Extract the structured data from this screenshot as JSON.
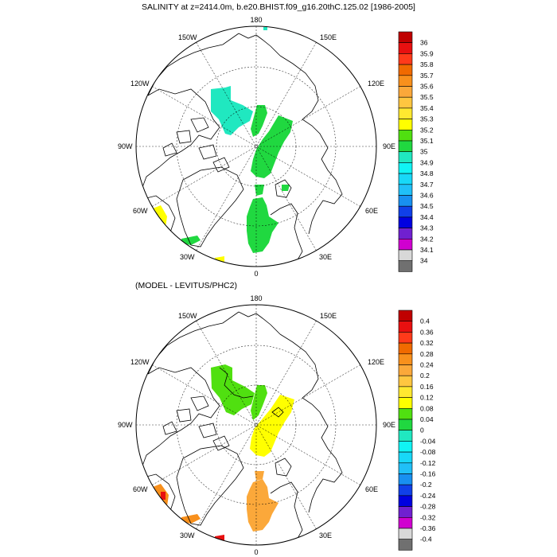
{
  "panel1": {
    "title": "SALINITY at z=2414.0m, b.e20.BHIST.f09_g16.20thC.125.02 [1986-2005]",
    "lon_labels": {
      "top": "180",
      "bottom": "0",
      "left": "90W",
      "right": "90E",
      "ul1": "150W",
      "ul2": "120W",
      "ur1": "150E",
      "ur2": "120E",
      "ll1": "60W",
      "ll2": "30W",
      "lr1": "60E",
      "lr2": "30E"
    },
    "colorbar": {
      "labels": [
        "36",
        "35.9",
        "35.8",
        "35.7",
        "35.6",
        "35.5",
        "35.4",
        "35.3",
        "35.2",
        "35.1",
        "35",
        "34.9",
        "34.8",
        "34.7",
        "34.6",
        "34.5",
        "34.4",
        "34.3",
        "34.2",
        "34.1",
        "34"
      ],
      "colors": [
        "#C00000",
        "#E81010",
        "#FF3A1A",
        "#F06A00",
        "#F8901C",
        "#FBA83A",
        "#FFC640",
        "#FFE830",
        "#FFFF00",
        "#50E010",
        "#20D840",
        "#20E8C0",
        "#10F4F4",
        "#18D8F8",
        "#20C0F8",
        "#1890F0",
        "#1040E8",
        "#0000E0",
        "#7020D0",
        "#D000D0",
        "#D8D8D8",
        "#707070"
      ]
    }
  },
  "panel2": {
    "title": "(MODEL - LEVITUS/PHC2)",
    "lon_labels": {
      "top": "180",
      "bottom": "0",
      "left": "90W",
      "right": "90E",
      "ul1": "150W",
      "ul2": "120W",
      "ur1": "150E",
      "ur2": "120E",
      "ll1": "60W",
      "ll2": "30W",
      "lr1": "60E",
      "lr2": "30E"
    },
    "colorbar": {
      "labels": [
        "0.4",
        "0.36",
        "0.32",
        "0.28",
        "0.24",
        "0.2",
        "0.16",
        "0.12",
        "0.08",
        "0.04",
        "0",
        "-0.04",
        "-0.08",
        "-0.12",
        "-0.16",
        "-0.2",
        "-0.24",
        "-0.28",
        "-0.32",
        "-0.36",
        "-0.4"
      ],
      "colors": [
        "#C00000",
        "#E81010",
        "#FF3A1A",
        "#F06A00",
        "#F8901C",
        "#FBA83A",
        "#FFC640",
        "#FFE830",
        "#FFFF00",
        "#50E010",
        "#20D840",
        "#20E8C0",
        "#10F4F4",
        "#18D8F8",
        "#20C0F8",
        "#1890F0",
        "#1040E8",
        "#0000E0",
        "#7020D0",
        "#D000D0",
        "#D8D8D8",
        "#707070"
      ]
    }
  },
  "colors": {
    "p1_green": "#20D840",
    "p1_cyan": "#20E8C0",
    "p1_yellow": "#FFFF00",
    "p2_green": "#50E010",
    "p2_yellow": "#FFFF00",
    "p2_orange": "#FBA83A",
    "p2_dark_orange": "#F8901C",
    "p2_red": "#E81010"
  }
}
